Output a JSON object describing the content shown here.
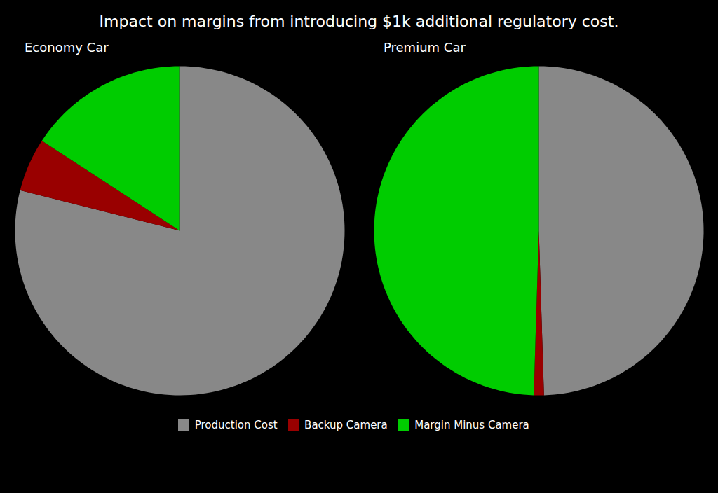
{
  "title": "Impact on margins from introducing $1k additional regulatory cost.",
  "chart_data": [
    {
      "type": "pie",
      "title": "Economy Car",
      "categories": [
        "Production Cost",
        "Backup Camera",
        "Margin Minus Camera"
      ],
      "values": [
        15000,
        1000,
        3000
      ],
      "colors": [
        "#888888",
        "#990000",
        "#00cc00"
      ],
      "legend": "bottom"
    },
    {
      "type": "pie",
      "title": "Premium Car",
      "categories": [
        "Production Cost",
        "Backup Camera",
        "Margin Minus Camera"
      ],
      "values": [
        50000,
        1000,
        50000
      ],
      "colors": [
        "#888888",
        "#990000",
        "#00cc00"
      ],
      "legend": "bottom"
    }
  ]
}
